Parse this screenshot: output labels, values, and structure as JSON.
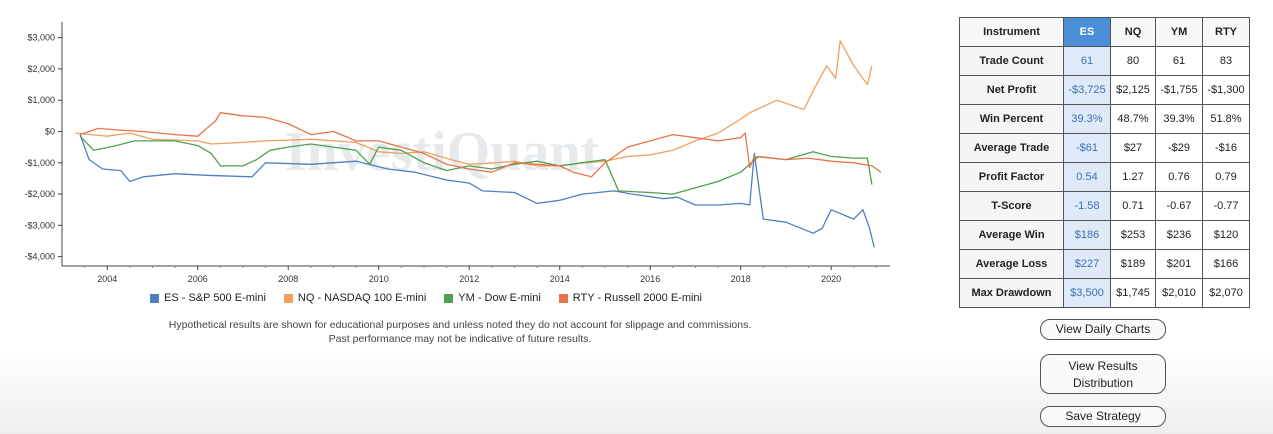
{
  "chart_data": {
    "type": "line",
    "xlim": [
      2003.0,
      2021.3
    ],
    "ylim": [
      -4300,
      3500
    ],
    "x_ticks": [
      2004,
      2006,
      2008,
      2010,
      2012,
      2014,
      2016,
      2018,
      2020
    ],
    "x_tick_labels": [
      "2004",
      "2006",
      "2008",
      "2010",
      "2012",
      "2014",
      "2016",
      "2018",
      "2020"
    ],
    "y_ticks": [
      3000,
      2000,
      1000,
      0,
      -1000,
      -2000,
      -3000,
      -4000
    ],
    "y_tick_labels": [
      "$3,000",
      "$2,000",
      "$1,000",
      "$0",
      "-$1,000",
      "-$2,000",
      "-$3,000",
      "-$4,000"
    ],
    "watermark": "InvestiQuant",
    "series": [
      {
        "name": "ES - S&P 500 E-mini",
        "color": "#4f7fbf",
        "points": [
          [
            2003.4,
            -100
          ],
          [
            2003.6,
            -900
          ],
          [
            2003.9,
            -1200
          ],
          [
            2004.3,
            -1250
          ],
          [
            2004.5,
            -1600
          ],
          [
            2004.8,
            -1450
          ],
          [
            2005.5,
            -1350
          ],
          [
            2006.2,
            -1400
          ],
          [
            2007.2,
            -1450
          ],
          [
            2007.5,
            -1000
          ],
          [
            2008.5,
            -1050
          ],
          [
            2009.5,
            -950
          ],
          [
            2010.2,
            -1200
          ],
          [
            2010.8,
            -1300
          ],
          [
            2011.5,
            -1550
          ],
          [
            2012.0,
            -1650
          ],
          [
            2012.3,
            -1900
          ],
          [
            2013.0,
            -1950
          ],
          [
            2013.5,
            -2300
          ],
          [
            2014.0,
            -2200
          ],
          [
            2014.5,
            -2000
          ],
          [
            2015.2,
            -1900
          ],
          [
            2015.6,
            -2000
          ],
          [
            2016.3,
            -2150
          ],
          [
            2016.6,
            -2100
          ],
          [
            2017.0,
            -2350
          ],
          [
            2017.5,
            -2350
          ],
          [
            2018.0,
            -2300
          ],
          [
            2018.2,
            -2350
          ],
          [
            2018.3,
            -700
          ],
          [
            2018.5,
            -2800
          ],
          [
            2019.0,
            -2900
          ],
          [
            2019.6,
            -3250
          ],
          [
            2019.8,
            -3100
          ],
          [
            2020.0,
            -2500
          ],
          [
            2020.5,
            -2800
          ],
          [
            2020.7,
            -2500
          ],
          [
            2020.85,
            -3100
          ],
          [
            2020.95,
            -3700
          ]
        ]
      },
      {
        "name": "NQ - NASDAQ 100 E-mini",
        "color": "#f0a060",
        "points": [
          [
            2003.3,
            -50
          ],
          [
            2004.0,
            -150
          ],
          [
            2004.5,
            -50
          ],
          [
            2005.0,
            -250
          ],
          [
            2006.0,
            -300
          ],
          [
            2006.3,
            -400
          ],
          [
            2007.0,
            -350
          ],
          [
            2007.5,
            -300
          ],
          [
            2008.5,
            -250
          ],
          [
            2009.5,
            -350
          ],
          [
            2010.0,
            -650
          ],
          [
            2010.5,
            -700
          ],
          [
            2011.0,
            -650
          ],
          [
            2011.6,
            -900
          ],
          [
            2012.0,
            -1050
          ],
          [
            2012.6,
            -1000
          ],
          [
            2013.0,
            -950
          ],
          [
            2013.5,
            -1100
          ],
          [
            2014.0,
            -1100
          ],
          [
            2014.5,
            -1000
          ],
          [
            2015.0,
            -950
          ],
          [
            2015.5,
            -800
          ],
          [
            2016.0,
            -750
          ],
          [
            2016.5,
            -600
          ],
          [
            2017.0,
            -300
          ],
          [
            2017.5,
            -50
          ],
          [
            2018.0,
            400
          ],
          [
            2018.2,
            600
          ],
          [
            2018.5,
            800
          ],
          [
            2018.8,
            1000
          ],
          [
            2019.0,
            900
          ],
          [
            2019.4,
            700
          ],
          [
            2019.6,
            1300
          ],
          [
            2019.9,
            2100
          ],
          [
            2020.1,
            1700
          ],
          [
            2020.2,
            2900
          ],
          [
            2020.5,
            2100
          ],
          [
            2020.8,
            1500
          ],
          [
            2020.9,
            2100
          ]
        ]
      },
      {
        "name": "YM - Dow E-mini",
        "color": "#4fa04f",
        "points": [
          [
            2003.4,
            -150
          ],
          [
            2003.7,
            -600
          ],
          [
            2004.2,
            -450
          ],
          [
            2004.6,
            -300
          ],
          [
            2005.5,
            -300
          ],
          [
            2006.0,
            -450
          ],
          [
            2006.3,
            -700
          ],
          [
            2006.5,
            -1100
          ],
          [
            2007.0,
            -1100
          ],
          [
            2007.3,
            -900
          ],
          [
            2007.6,
            -600
          ],
          [
            2008.0,
            -500
          ],
          [
            2008.5,
            -400
          ],
          [
            2009.0,
            -500
          ],
          [
            2009.5,
            -600
          ],
          [
            2009.8,
            -1050
          ],
          [
            2010.0,
            -500
          ],
          [
            2010.5,
            -600
          ],
          [
            2011.0,
            -1000
          ],
          [
            2011.5,
            -1250
          ],
          [
            2012.0,
            -1100
          ],
          [
            2012.5,
            -1200
          ],
          [
            2013.0,
            -1050
          ],
          [
            2013.5,
            -950
          ],
          [
            2014.0,
            -1100
          ],
          [
            2014.5,
            -1000
          ],
          [
            2015.0,
            -900
          ],
          [
            2015.3,
            -1900
          ],
          [
            2016.0,
            -1950
          ],
          [
            2016.5,
            -2000
          ],
          [
            2017.0,
            -1800
          ],
          [
            2017.5,
            -1600
          ],
          [
            2018.0,
            -1300
          ],
          [
            2018.2,
            -1050
          ],
          [
            2018.4,
            -800
          ],
          [
            2019.0,
            -900
          ],
          [
            2019.6,
            -650
          ],
          [
            2020.0,
            -800
          ],
          [
            2020.5,
            -850
          ],
          [
            2020.8,
            -850
          ],
          [
            2020.9,
            -1700
          ]
        ]
      },
      {
        "name": "RTY - Russell 2000 E-mini",
        "color": "#e8734a",
        "points": [
          [
            2003.4,
            -100
          ],
          [
            2003.8,
            100
          ],
          [
            2004.2,
            50
          ],
          [
            2004.8,
            0
          ],
          [
            2005.5,
            -100
          ],
          [
            2006.0,
            -150
          ],
          [
            2006.4,
            350
          ],
          [
            2006.5,
            600
          ],
          [
            2007.0,
            500
          ],
          [
            2007.5,
            450
          ],
          [
            2008.0,
            250
          ],
          [
            2008.5,
            -100
          ],
          [
            2009.0,
            0
          ],
          [
            2009.5,
            -300
          ],
          [
            2010.0,
            -300
          ],
          [
            2010.5,
            -500
          ],
          [
            2011.0,
            -700
          ],
          [
            2011.5,
            -1050
          ],
          [
            2012.0,
            -1200
          ],
          [
            2012.5,
            -1300
          ],
          [
            2013.0,
            -1000
          ],
          [
            2013.5,
            -1050
          ],
          [
            2014.0,
            -1100
          ],
          [
            2014.3,
            -1300
          ],
          [
            2014.7,
            -1450
          ],
          [
            2015.0,
            -1000
          ],
          [
            2015.5,
            -500
          ],
          [
            2016.0,
            -300
          ],
          [
            2016.5,
            -100
          ],
          [
            2017.0,
            -200
          ],
          [
            2017.5,
            -300
          ],
          [
            2018.0,
            -200
          ],
          [
            2018.1,
            -50
          ],
          [
            2018.2,
            -1150
          ],
          [
            2018.3,
            -800
          ],
          [
            2019.0,
            -900
          ],
          [
            2019.5,
            -850
          ],
          [
            2020.0,
            -950
          ],
          [
            2020.5,
            -1000
          ],
          [
            2020.9,
            -1100
          ],
          [
            2021.1,
            -1300
          ]
        ]
      }
    ]
  },
  "legend": [
    {
      "label": "ES - S&P 500 E-mini",
      "color": "#4f7fbf"
    },
    {
      "label": "NQ - NASDAQ 100 E-mini",
      "color": "#f0a060"
    },
    {
      "label": "YM - Dow E-mini",
      "color": "#4fa04f"
    },
    {
      "label": "RTY - Russell 2000 E-mini",
      "color": "#e8734a"
    }
  ],
  "disclaimer": {
    "line1": "Hypothetical results are shown for educational purposes and unless noted they do not account for slippage and commissions.",
    "line2": "Past performance may not be indicative of future results."
  },
  "table": {
    "headers": [
      "Instrument",
      "ES",
      "NQ",
      "YM",
      "RTY"
    ],
    "rows": [
      [
        "Trade Count",
        "61",
        "80",
        "61",
        "83"
      ],
      [
        "Net Profit",
        "-$3,725",
        "$2,125",
        "-$1,755",
        "-$1,300"
      ],
      [
        "Win Percent",
        "39.3%",
        "48.7%",
        "39.3%",
        "51.8%"
      ],
      [
        "Average Trade",
        "-$61",
        "$27",
        "-$29",
        "-$16"
      ],
      [
        "Profit Factor",
        "0.54",
        "1.27",
        "0.76",
        "0.79"
      ],
      [
        "T-Score",
        "-1.58",
        "0.71",
        "-0.67",
        "-0.77"
      ],
      [
        "Average Win",
        "$186",
        "$253",
        "$236",
        "$120"
      ],
      [
        "Average Loss",
        "$227",
        "$189",
        "$201",
        "$166"
      ],
      [
        "Max Drawdown",
        "$3,500",
        "$1,745",
        "$2,010",
        "$2,070"
      ]
    ],
    "highlight_color": "#4a8fd8"
  },
  "buttons": {
    "daily_charts": "View Daily Charts",
    "results_distribution": "View Results\nDistribution",
    "save_strategy": "Save Strategy"
  }
}
